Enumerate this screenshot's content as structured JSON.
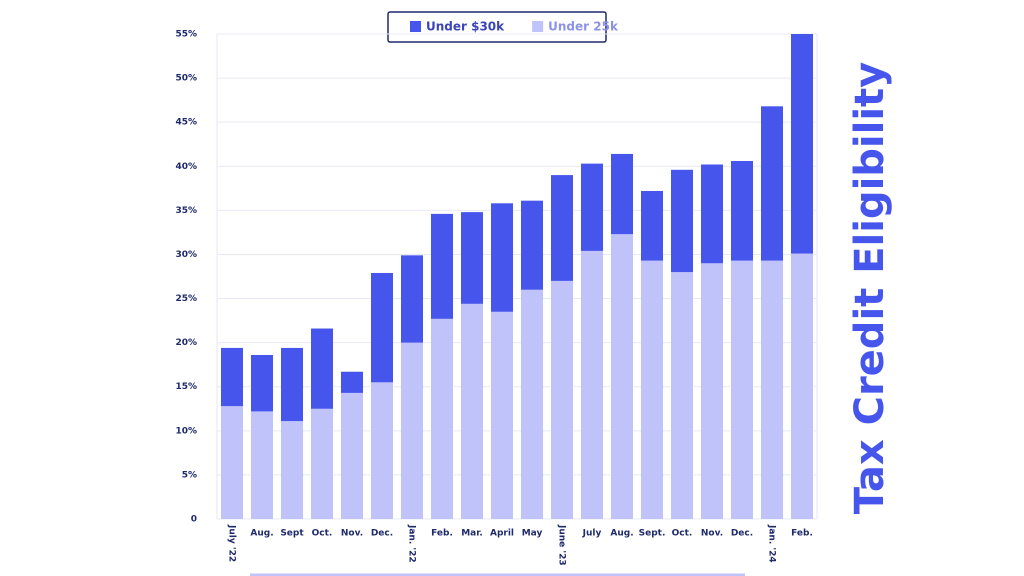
{
  "chart_data": {
    "type": "stacked-bar",
    "title": "Tax Credit Eligibility",
    "categories": [
      "July '22",
      "Aug.",
      "Sept",
      "Oct.",
      "Nov.",
      "Dec.",
      "Jan. '22",
      "Feb.",
      "Mar.",
      "April",
      "May",
      "June '23",
      "July",
      "Aug.",
      "Sept.",
      "Oct.",
      "Nov.",
      "Dec.",
      "Jan. '24",
      "Feb."
    ],
    "series": [
      {
        "name": "Under 25k",
        "color": "#c0c3fa",
        "values": [
          12.8,
          12.2,
          11.1,
          12.5,
          14.3,
          15.5,
          20.0,
          22.7,
          24.4,
          23.5,
          26.0,
          27.0,
          30.4,
          32.3,
          29.3,
          28.0,
          29.0,
          29.3,
          29.3,
          30.1
        ]
      },
      {
        "name": "Under $30k",
        "color": "#4655ec",
        "values": [
          6.6,
          6.4,
          8.3,
          9.1,
          2.4,
          12.4,
          9.9,
          11.9,
          10.4,
          12.3,
          10.1,
          12.0,
          9.9,
          9.1,
          7.9,
          11.6,
          11.2,
          11.3,
          17.5,
          24.9
        ]
      }
    ],
    "legend_order": [
      1,
      0
    ],
    "ylim": [
      0,
      55
    ],
    "yticks": [
      0,
      {
        "value": 5,
        "label": "5%"
      },
      {
        "value": 10,
        "label": "10%"
      },
      {
        "value": 15,
        "label": "15%"
      },
      {
        "value": 20,
        "label": "20%"
      },
      {
        "value": 25,
        "label": "25%"
      },
      {
        "value": 30,
        "label": "30%"
      },
      {
        "value": 35,
        "label": "35%"
      },
      {
        "value": 40,
        "label": "40%"
      },
      {
        "value": 45,
        "label": "45%"
      },
      {
        "value": 50,
        "label": "50%"
      },
      {
        "value": 55,
        "label": "55%"
      }
    ],
    "grid": true
  }
}
